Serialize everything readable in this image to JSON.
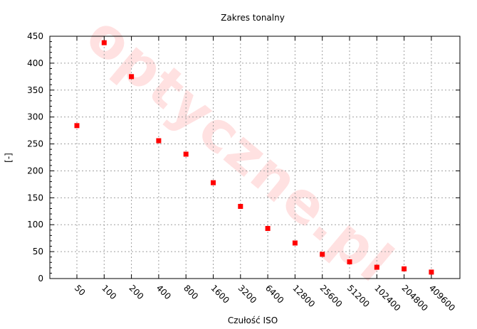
{
  "chart_data": {
    "type": "scatter",
    "title": "Zakres tonalny",
    "xlabel": "Czułość ISO",
    "ylabel": "[-]",
    "categories": [
      "50",
      "100",
      "200",
      "400",
      "800",
      "1600",
      "3200",
      "6400",
      "12800",
      "25600",
      "51200",
      "102400",
      "204800",
      "409600"
    ],
    "series": [
      {
        "values": [
          284,
          438,
          375,
          256,
          231,
          178,
          134,
          93,
          66,
          45,
          31,
          21,
          18,
          12
        ],
        "color": "#ff0000"
      }
    ],
    "ylim": [
      0,
      450
    ],
    "yticks": [
      0,
      50,
      100,
      150,
      200,
      250,
      300,
      350,
      400,
      450
    ],
    "grid": true,
    "marker": "square"
  },
  "watermark": "optyczne.pl"
}
